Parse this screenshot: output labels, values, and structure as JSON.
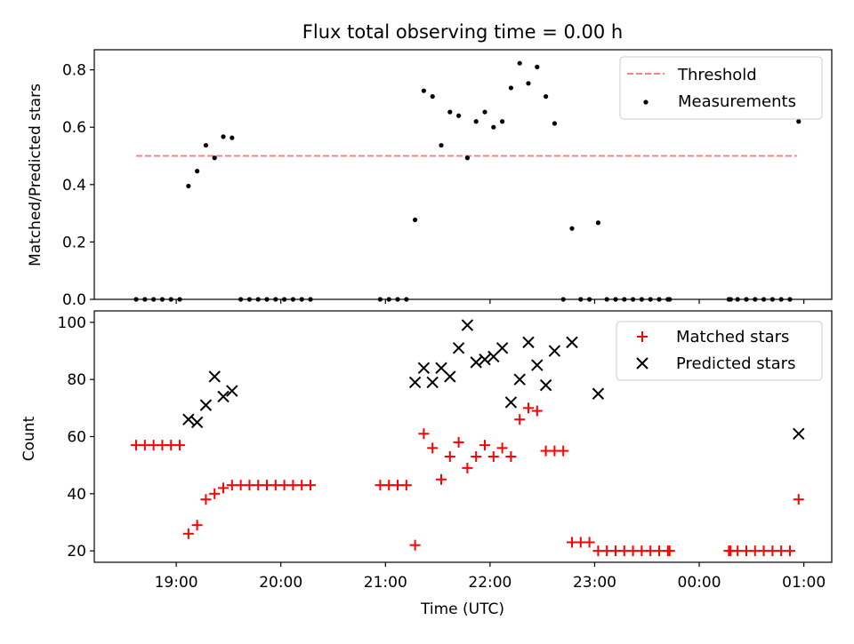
{
  "colors": {
    "threshold": "#ff8080",
    "measurement": "#000000",
    "matched": "#ff0000",
    "predicted": "#000000"
  },
  "chart_data": [
    {
      "type": "scatter",
      "title": "Flux total observing time = 0.00 h",
      "xlabel": "",
      "ylabel": "Matched/Predicted stars",
      "xlim": [
        "18:13",
        "01:16"
      ],
      "ylim": [
        0,
        0.87
      ],
      "xticks": [
        "19:00",
        "20:00",
        "21:00",
        "22:00",
        "23:00",
        "00:00",
        "01:00"
      ],
      "yticks": [
        "0.0",
        "0.2",
        "0.4",
        "0.6",
        "0.8"
      ],
      "legend": {
        "position": "upper right",
        "entries": [
          "Threshold",
          "Measurements"
        ]
      },
      "threshold": {
        "name": "Threshold",
        "x": [
          "18:37",
          "00:56"
        ],
        "y": 0.5
      },
      "series": [
        {
          "name": "Measurements",
          "x": [
            "18:37",
            "18:42",
            "18:47",
            "18:52",
            "18:57",
            "19:02",
            "19:07",
            "19:12",
            "19:17",
            "19:22",
            "19:27",
            "19:32",
            "19:37",
            "19:42",
            "19:47",
            "19:52",
            "19:57",
            "20:02",
            "20:07",
            "20:12",
            "20:17",
            "20:57",
            "21:02",
            "21:07",
            "21:12",
            "21:17",
            "21:22",
            "21:27",
            "21:32",
            "21:37",
            "21:42",
            "21:47",
            "21:52",
            "21:57",
            "22:02",
            "22:07",
            "22:12",
            "22:17",
            "22:22",
            "22:27",
            "22:32",
            "22:37",
            "22:42",
            "22:47",
            "22:52",
            "22:57",
            "23:02",
            "23:07",
            "23:12",
            "23:17",
            "23:22",
            "23:27",
            "23:32",
            "23:37",
            "23:42",
            "23:43",
            "00:17",
            "00:18",
            "00:22",
            "00:27",
            "00:32",
            "00:37",
            "00:42",
            "00:47",
            "00:52",
            "00:57"
          ],
          "y": [
            0,
            0,
            0,
            0,
            0,
            0,
            0.395,
            0.447,
            0.537,
            0.493,
            0.567,
            0.563,
            0,
            0,
            0,
            0,
            0,
            0,
            0,
            0,
            0,
            0,
            0,
            0,
            0,
            0.277,
            0.727,
            0.707,
            0.537,
            0.653,
            0.64,
            0.493,
            0.62,
            0.653,
            0.6,
            0.62,
            0.737,
            0.823,
            0.753,
            0.81,
            0.707,
            0.613,
            0,
            0.247,
            0,
            0,
            0.267,
            0,
            0,
            0,
            0,
            0,
            0,
            0,
            0,
            0,
            0,
            0,
            0,
            0,
            0,
            0,
            0,
            0,
            0,
            0.62
          ]
        }
      ]
    },
    {
      "type": "scatter",
      "title": "",
      "xlabel": "Time (UTC)",
      "ylabel": "Count",
      "xlim": [
        "18:13",
        "01:16"
      ],
      "ylim": [
        16,
        104
      ],
      "xticks": [
        "19:00",
        "20:00",
        "21:00",
        "22:00",
        "23:00",
        "00:00",
        "01:00"
      ],
      "yticks": [
        "20",
        "40",
        "60",
        "80",
        "100"
      ],
      "legend": {
        "position": "upper right",
        "entries": [
          "Matched stars",
          "Predicted stars"
        ]
      },
      "series": [
        {
          "name": "Matched stars",
          "marker": "plus",
          "x": [
            "18:37",
            "18:42",
            "18:47",
            "18:52",
            "18:57",
            "19:02",
            "19:07",
            "19:12",
            "19:17",
            "19:22",
            "19:27",
            "19:32",
            "19:37",
            "19:42",
            "19:47",
            "19:52",
            "19:57",
            "20:02",
            "20:07",
            "20:12",
            "20:17",
            "20:57",
            "21:02",
            "21:07",
            "21:12",
            "21:17",
            "21:22",
            "21:27",
            "21:32",
            "21:37",
            "21:42",
            "21:47",
            "21:52",
            "21:57",
            "22:02",
            "22:07",
            "22:12",
            "22:17",
            "22:22",
            "22:27",
            "22:32",
            "22:37",
            "22:42",
            "22:47",
            "22:52",
            "22:57",
            "23:02",
            "23:07",
            "23:12",
            "23:17",
            "23:22",
            "23:27",
            "23:32",
            "23:37",
            "23:42",
            "23:43",
            "00:17",
            "00:18",
            "00:22",
            "00:27",
            "00:32",
            "00:37",
            "00:42",
            "00:47",
            "00:52",
            "00:57"
          ],
          "y": [
            57,
            57,
            57,
            57,
            57,
            57,
            26,
            29,
            38,
            40,
            42,
            43,
            43,
            43,
            43,
            43,
            43,
            43,
            43,
            43,
            43,
            43,
            43,
            43,
            43,
            22,
            61,
            56,
            45,
            53,
            58,
            49,
            53,
            57,
            53,
            56,
            53,
            66,
            70,
            69,
            55,
            55,
            55,
            23,
            23,
            23,
            20,
            20,
            20,
            20,
            20,
            20,
            20,
            20,
            20,
            20,
            20,
            20,
            20,
            20,
            20,
            20,
            20,
            20,
            20,
            38
          ]
        },
        {
          "name": "Predicted stars",
          "marker": "x",
          "x": [
            "19:07",
            "19:12",
            "19:17",
            "19:22",
            "19:27",
            "19:32",
            "21:17",
            "21:22",
            "21:27",
            "21:32",
            "21:37",
            "21:42",
            "21:47",
            "21:52",
            "21:57",
            "22:02",
            "22:07",
            "22:12",
            "22:17",
            "22:22",
            "22:27",
            "22:32",
            "22:37",
            "22:47",
            "23:02",
            "00:57"
          ],
          "y": [
            66,
            65,
            71,
            81,
            74,
            76,
            79,
            84,
            79,
            84,
            81,
            91,
            99,
            86,
            87,
            88,
            91,
            72,
            80,
            93,
            85,
            78,
            90,
            93,
            75,
            61
          ]
        }
      ]
    }
  ]
}
